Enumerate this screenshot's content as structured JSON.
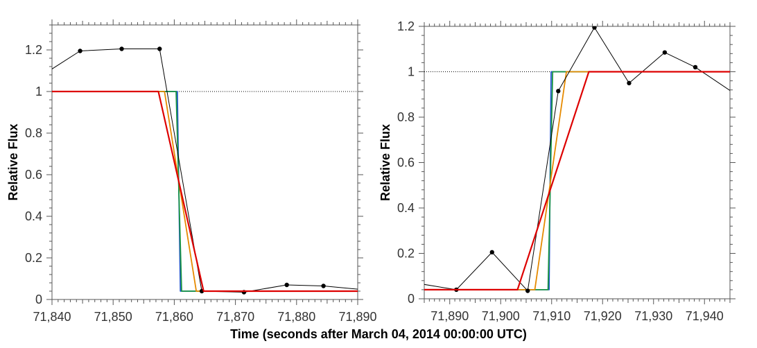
{
  "chart_data": [
    {
      "type": "line",
      "xlabel": "Time (seconds after March 04, 2014 00:00:00 UTC)",
      "ylabel": "Relative Flux",
      "xlim": [
        71840,
        71890
      ],
      "ylim": [
        0,
        1.32
      ],
      "xticks": [
        71840,
        71850,
        71860,
        71870,
        71880,
        71890
      ],
      "xtick_labels": [
        "71,840",
        "71,850",
        "71,860",
        "71,870",
        "71,880",
        "71,890"
      ],
      "yticks": [
        0,
        0.2,
        0.4,
        0.6,
        0.8,
        1,
        1.2
      ],
      "ytick_labels": [
        "0",
        "0.2",
        "0.4",
        "0.6",
        "0.8",
        "1",
        "1.2"
      ],
      "reference_line": {
        "y": 1,
        "style": "dotted"
      },
      "series": [
        {
          "kind": "observed",
          "color": "#000000",
          "markers": true,
          "x": [
            71838.5,
            71844.6,
            71851.4,
            71857.6,
            71864.5,
            71871.4,
            71878.4,
            71884.4,
            71891.6
          ],
          "y": [
            1.08,
            1.195,
            1.205,
            1.205,
            0.04,
            0.035,
            0.07,
            0.065,
            0.045
          ]
        },
        {
          "kind": "model",
          "color": "#2255cc",
          "x": [
            71840,
            71860.5,
            71861.0,
            71890
          ],
          "y": [
            1,
            1,
            0.04,
            0.04
          ]
        },
        {
          "kind": "model",
          "color": "#1a9641",
          "x": [
            71840,
            71860.3,
            71861.2,
            71890
          ],
          "y": [
            1,
            1,
            0.04,
            0.04
          ]
        },
        {
          "kind": "model",
          "color": "#e68a00",
          "x": [
            71840,
            71858.4,
            71863.6,
            71890
          ],
          "y": [
            1,
            1,
            0.04,
            0.04
          ]
        },
        {
          "kind": "model",
          "color": "#dd0000",
          "x": [
            71840,
            71857.4,
            71864.8,
            71890
          ],
          "y": [
            1,
            1,
            0.04,
            0.04
          ]
        }
      ]
    },
    {
      "type": "line",
      "xlabel": "",
      "ylabel": "Relative Flux",
      "xlim": [
        71885,
        71945
      ],
      "ylim": [
        0,
        1.2
      ],
      "xticks": [
        71890,
        71900,
        71910,
        71920,
        71930,
        71940
      ],
      "xtick_labels": [
        "71,890",
        "71,900",
        "71,910",
        "71,920",
        "71,930",
        "71,940"
      ],
      "yticks": [
        0,
        0.2,
        0.4,
        0.6,
        0.8,
        1,
        1.2
      ],
      "ytick_labels": [
        "0",
        "0.2",
        "0.4",
        "0.6",
        "0.8",
        "1",
        "1.2"
      ],
      "reference_line": {
        "y": 1,
        "style": "dotted"
      },
      "series": [
        {
          "kind": "observed",
          "color": "#000000",
          "markers": true,
          "x": [
            71884.5,
            71891.3,
            71898.3,
            71905.3,
            71911.3,
            71918.4,
            71925.2,
            71932.2,
            71938.2,
            71945.5
          ],
          "y": [
            0.065,
            0.04,
            0.205,
            0.035,
            0.915,
            1.195,
            0.95,
            1.085,
            1.02,
            0.91
          ]
        },
        {
          "kind": "model",
          "color": "#2255cc",
          "x": [
            71885,
            71909.5,
            71909.9,
            71945
          ],
          "y": [
            0.04,
            0.04,
            1,
            1
          ]
        },
        {
          "kind": "model",
          "color": "#1a9641",
          "x": [
            71885,
            71909.3,
            71910.2,
            71945
          ],
          "y": [
            0.04,
            0.04,
            1,
            1
          ]
        },
        {
          "kind": "model",
          "color": "#e68a00",
          "x": [
            71885,
            71906.7,
            71912.9,
            71945
          ],
          "y": [
            0.04,
            0.04,
            1,
            1
          ]
        },
        {
          "kind": "model",
          "color": "#dd0000",
          "x": [
            71885,
            71903.3,
            71917.3,
            71945
          ],
          "y": [
            0.04,
            0.04,
            1,
            1
          ]
        }
      ]
    }
  ]
}
